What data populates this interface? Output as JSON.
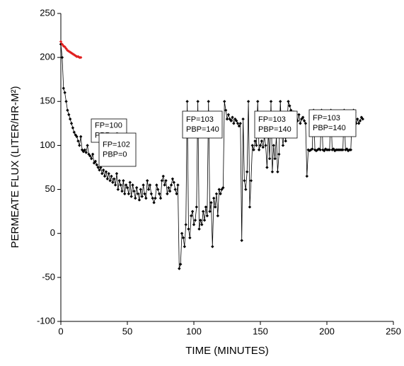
{
  "chart_data": {
    "type": "line",
    "xlabel": "TIME (MINUTES)",
    "ylabel": "PERMEATE FLUX (LITER/HR-M²)",
    "xlim": [
      0,
      250
    ],
    "xticks": [
      0,
      50,
      100,
      150,
      200,
      250
    ],
    "ylim": [
      -100,
      250
    ],
    "yticks": [
      -100,
      -50,
      0,
      50,
      100,
      150,
      200,
      250
    ],
    "annotations": [
      {
        "lines": [
          "FP=100",
          "PBP=0"
        ]
      },
      {
        "lines": [
          "FP=102",
          "PBP=0"
        ]
      },
      {
        "lines": [
          "FP=103",
          "PBP=140"
        ]
      },
      {
        "lines": [
          "FP=103",
          "PBP=140"
        ]
      },
      {
        "lines": [
          "FP=103",
          "PBP=140"
        ]
      }
    ],
    "series": [
      {
        "color": "#000000",
        "x": [
          0,
          1,
          2,
          3,
          4,
          5,
          6,
          7,
          8,
          9,
          10,
          11,
          12,
          13,
          14,
          15,
          16,
          17,
          18,
          19,
          20,
          21,
          22,
          23,
          24,
          25,
          26,
          27,
          28,
          29,
          30,
          31,
          32,
          33,
          34,
          35,
          36,
          37,
          38,
          39,
          40,
          41,
          42,
          43,
          44,
          45,
          46,
          47,
          48,
          49,
          50,
          51,
          52,
          53,
          54,
          55,
          56,
          57,
          58,
          59,
          60,
          61,
          62,
          63,
          64,
          65,
          66,
          67,
          68,
          69,
          70,
          71,
          72,
          73,
          74,
          75,
          76,
          77,
          78,
          79,
          80,
          81,
          82,
          83,
          84,
          85,
          86,
          87,
          88,
          89,
          90,
          91,
          92,
          93,
          94,
          95,
          96,
          97,
          98,
          99,
          100,
          101,
          102,
          103,
          104,
          105,
          106,
          107,
          108,
          109,
          110,
          111,
          112,
          113,
          114,
          115,
          116,
          117,
          118,
          119,
          120,
          121,
          122,
          123,
          124,
          125,
          126,
          127,
          128,
          129,
          130,
          131,
          132,
          133,
          134,
          135,
          136,
          137,
          138,
          139,
          140,
          141,
          142,
          143,
          144,
          145,
          146,
          147,
          148,
          149,
          150,
          151,
          152,
          153,
          154,
          155,
          156,
          157,
          158,
          159,
          160,
          161,
          162,
          163,
          164,
          165,
          166,
          167,
          168,
          169,
          170,
          171,
          172,
          173,
          174,
          175,
          176,
          177,
          178,
          179,
          180,
          181,
          182,
          183,
          184,
          185,
          186,
          187,
          188,
          189,
          190,
          191,
          192,
          193,
          194,
          195,
          196,
          197,
          198,
          199,
          200,
          201,
          202,
          203,
          204,
          205,
          206,
          207,
          208,
          209,
          210,
          211,
          212,
          213,
          214,
          215,
          216,
          217,
          218,
          219,
          220,
          221,
          222,
          223,
          224,
          225,
          226,
          227
        ],
        "values": [
          215,
          200,
          165,
          160,
          150,
          140,
          135,
          130,
          125,
          120,
          115,
          112,
          110,
          105,
          100,
          110,
          95,
          93,
          95,
          92,
          100,
          90,
          88,
          85,
          90,
          80,
          82,
          78,
          75,
          72,
          75,
          68,
          72,
          65,
          70,
          62,
          68,
          60,
          65,
          58,
          62,
          55,
          68,
          50,
          60,
          55,
          48,
          60,
          45,
          55,
          52,
          45,
          58,
          42,
          55,
          48,
          40,
          52,
          45,
          38,
          50,
          42,
          55,
          45,
          40,
          60,
          50,
          55,
          45,
          40,
          35,
          40,
          55,
          50,
          45,
          40,
          60,
          65,
          55,
          60,
          45,
          52,
          48,
          55,
          62,
          58,
          50,
          45,
          55,
          -40,
          -35,
          0,
          -5,
          -15,
          10,
          150,
          5,
          -5,
          20,
          25,
          10,
          15,
          30,
          150,
          5,
          15,
          10,
          25,
          15,
          30,
          20,
          150,
          25,
          35,
          -15,
          40,
          30,
          45,
          20,
          50,
          45,
          50,
          52,
          150,
          140,
          130,
          135,
          130,
          128,
          132,
          125,
          130,
          128,
          125,
          122,
          125,
          -8,
          130,
          60,
          50,
          70,
          150,
          30,
          60,
          100,
          95,
          105,
          100,
          150,
          95,
          100,
          105,
          98,
          110,
          100,
          75,
          115,
          85,
          150,
          70,
          100,
          85,
          110,
          70,
          90,
          150,
          115,
          100,
          120,
          105,
          125,
          150,
          145,
          140,
          135,
          138,
          132,
          130,
          128,
          135,
          125,
          130,
          132,
          128,
          125,
          65,
          95,
          94,
          95,
          96,
          140,
          95,
          94,
          95,
          96,
          95,
          140,
          95,
          94,
          96,
          95,
          95,
          95,
          140,
          95,
          96,
          94,
          95,
          95,
          95,
          95,
          95,
          95,
          140,
          95,
          96,
          94,
          95,
          95,
          135,
          140,
          138,
          125,
          130,
          125,
          128,
          132,
          130
        ]
      },
      {
        "color": "#e02020",
        "x": [
          0,
          1,
          2,
          3,
          4,
          5,
          6,
          7,
          8,
          9,
          10,
          11,
          12,
          13,
          14,
          15
        ],
        "values": [
          218,
          215,
          213,
          212,
          210,
          208,
          207,
          206,
          205,
          204,
          203,
          202,
          201,
          201,
          200,
          200
        ]
      }
    ]
  }
}
